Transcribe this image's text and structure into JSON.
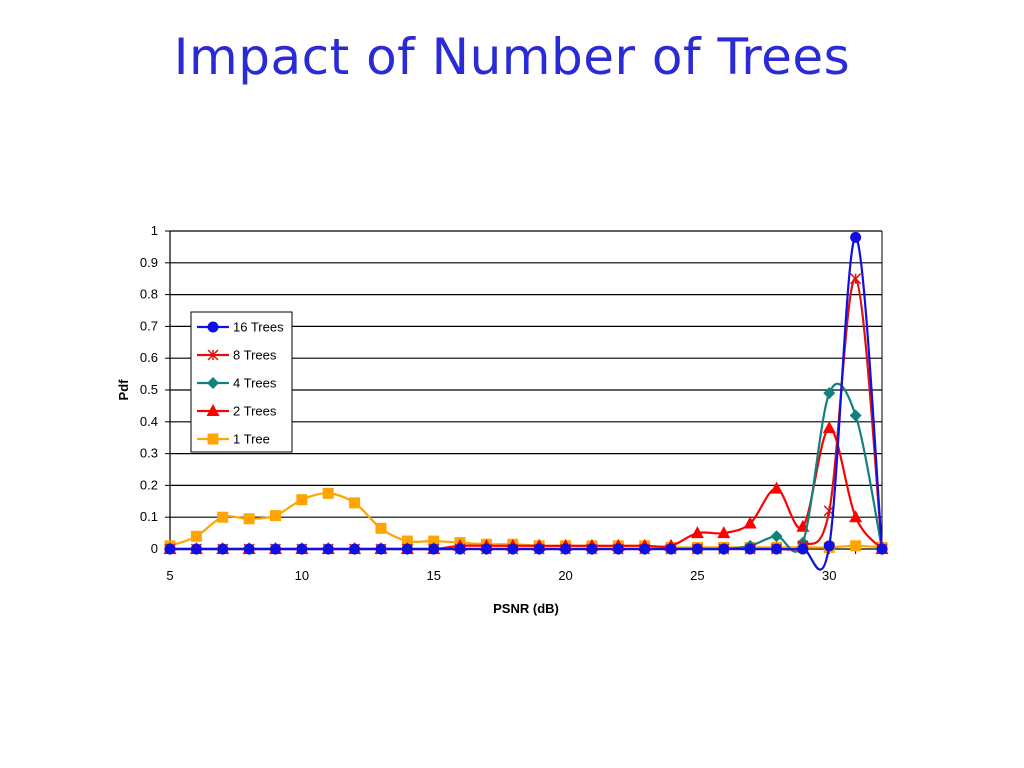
{
  "slide": {
    "title": "Impact of Number of Trees"
  },
  "chart_data": {
    "type": "line",
    "title": "",
    "xlabel": "PSNR (dB)",
    "ylabel": "Pdf",
    "xlim": [
      5,
      32
    ],
    "ylim": [
      0,
      1
    ],
    "x_ticks": [
      5,
      10,
      15,
      20,
      25,
      30
    ],
    "y_ticks": [
      0,
      0.1,
      0.2,
      0.3,
      0.4,
      0.5,
      0.6,
      0.7,
      0.8,
      0.9,
      1
    ],
    "grid": "horizontal",
    "legend_position": "left-middle",
    "series": [
      {
        "name": "16 Trees",
        "color": "#1010e0",
        "marker": "circle",
        "x": [
          5,
          6,
          7,
          8,
          9,
          10,
          11,
          12,
          13,
          14,
          15,
          16,
          17,
          18,
          19,
          20,
          21,
          22,
          23,
          24,
          25,
          26,
          27,
          28,
          29,
          30,
          31,
          32
        ],
        "y": [
          0,
          0,
          0,
          0,
          0,
          0,
          0,
          0,
          0,
          0,
          0,
          0,
          0,
          0,
          0,
          0,
          0,
          0,
          0,
          0,
          0,
          0,
          0,
          0,
          0,
          0.01,
          0.98,
          0
        ]
      },
      {
        "name": "8 Trees",
        "color": "#e01010",
        "marker": "x",
        "x": [
          5,
          6,
          7,
          8,
          9,
          10,
          11,
          12,
          13,
          14,
          15,
          16,
          17,
          18,
          19,
          20,
          21,
          22,
          23,
          24,
          25,
          26,
          27,
          28,
          29,
          30,
          31,
          32
        ],
        "y": [
          0,
          0,
          0,
          0,
          0,
          0,
          0,
          0,
          0,
          0,
          0,
          0,
          0,
          0,
          0,
          0,
          0,
          0,
          0,
          0,
          0,
          0,
          0,
          0,
          0.01,
          0.12,
          0.85,
          0
        ]
      },
      {
        "name": "4 Trees",
        "color": "#138080",
        "marker": "diamond",
        "x": [
          5,
          6,
          7,
          8,
          9,
          10,
          11,
          12,
          13,
          14,
          15,
          16,
          17,
          18,
          19,
          20,
          21,
          22,
          23,
          24,
          25,
          26,
          27,
          28,
          29,
          30,
          31,
          32
        ],
        "y": [
          0,
          0,
          0,
          0,
          0,
          0,
          0,
          0,
          0,
          0,
          0,
          0,
          0,
          0,
          0,
          0,
          0,
          0,
          0,
          0,
          0,
          0,
          0.01,
          0.04,
          0.02,
          0.49,
          0.42,
          0
        ]
      },
      {
        "name": "2 Trees",
        "color": "#ff0000",
        "marker": "triangle",
        "x": [
          5,
          6,
          7,
          8,
          9,
          10,
          11,
          12,
          13,
          14,
          15,
          16,
          17,
          18,
          19,
          20,
          21,
          22,
          23,
          24,
          25,
          26,
          27,
          28,
          29,
          30,
          31,
          32
        ],
        "y": [
          0,
          0,
          0,
          0,
          0,
          0,
          0,
          0,
          0,
          0,
          0,
          0.01,
          0.01,
          0.01,
          0.01,
          0.01,
          0.01,
          0.01,
          0.01,
          0.01,
          0.05,
          0.05,
          0.08,
          0.19,
          0.07,
          0.38,
          0.1,
          0
        ]
      },
      {
        "name": "1 Tree",
        "color": "#ffa500",
        "marker": "square",
        "x": [
          5,
          6,
          7,
          8,
          9,
          10,
          11,
          12,
          13,
          14,
          15,
          16,
          17,
          18,
          19,
          20,
          21,
          22,
          23,
          24,
          25,
          26,
          27,
          28,
          29,
          30,
          31,
          32
        ],
        "y": [
          0.01,
          0.04,
          0.1,
          0.095,
          0.105,
          0.155,
          0.175,
          0.145,
          0.065,
          0.025,
          0.025,
          0.02,
          0.015,
          0.015,
          0.01,
          0.01,
          0.01,
          0.01,
          0.01,
          0.005,
          0.005,
          0.005,
          0.005,
          0.005,
          0.005,
          0.005,
          0.01,
          0.005
        ]
      }
    ]
  }
}
